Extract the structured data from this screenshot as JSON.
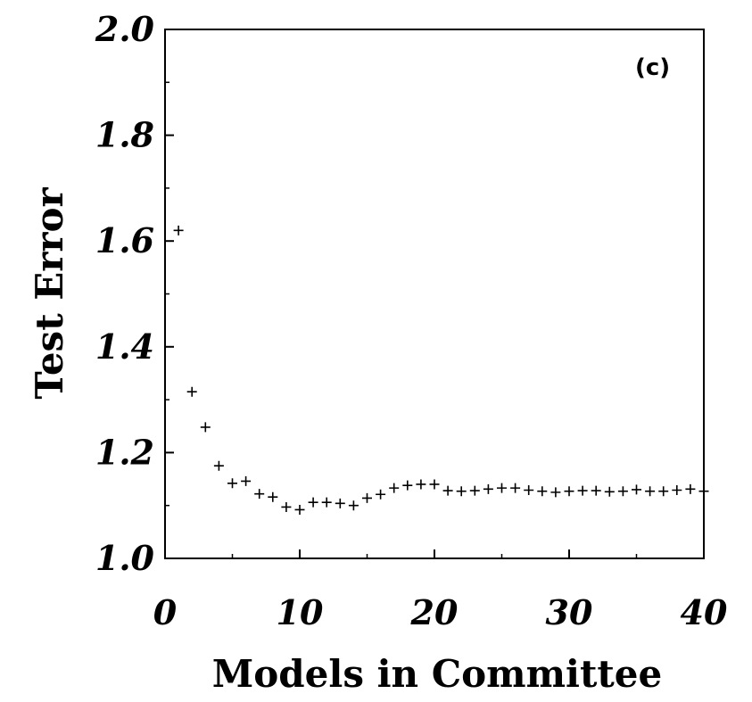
{
  "chart_data": {
    "type": "scatter",
    "panel_label": "(c)",
    "xlabel": "Models in Committee",
    "ylabel": "Test Error",
    "xlim": [
      0,
      40
    ],
    "ylim": [
      1.0,
      2.0
    ],
    "xticks": [
      "0",
      "10",
      "20",
      "30",
      "40"
    ],
    "yticks": [
      "1.0",
      "1.2",
      "1.4",
      "1.6",
      "1.8",
      "2.0"
    ],
    "grid": false,
    "marker": "+",
    "x": [
      1,
      2,
      3,
      4,
      5,
      6,
      7,
      8,
      9,
      10,
      11,
      12,
      13,
      14,
      15,
      16,
      17,
      18,
      19,
      20,
      21,
      22,
      23,
      24,
      25,
      26,
      27,
      28,
      29,
      30,
      31,
      32,
      33,
      34,
      35,
      36,
      37,
      38,
      39,
      40
    ],
    "y": [
      1.62,
      1.315,
      1.248,
      1.175,
      1.142,
      1.146,
      1.122,
      1.116,
      1.097,
      1.092,
      1.106,
      1.106,
      1.104,
      1.1,
      1.114,
      1.121,
      1.133,
      1.138,
      1.14,
      1.14,
      1.128,
      1.127,
      1.128,
      1.131,
      1.133,
      1.133,
      1.129,
      1.127,
      1.125,
      1.127,
      1.128,
      1.128,
      1.126,
      1.127,
      1.13,
      1.127,
      1.127,
      1.129,
      1.131,
      1.127
    ]
  }
}
